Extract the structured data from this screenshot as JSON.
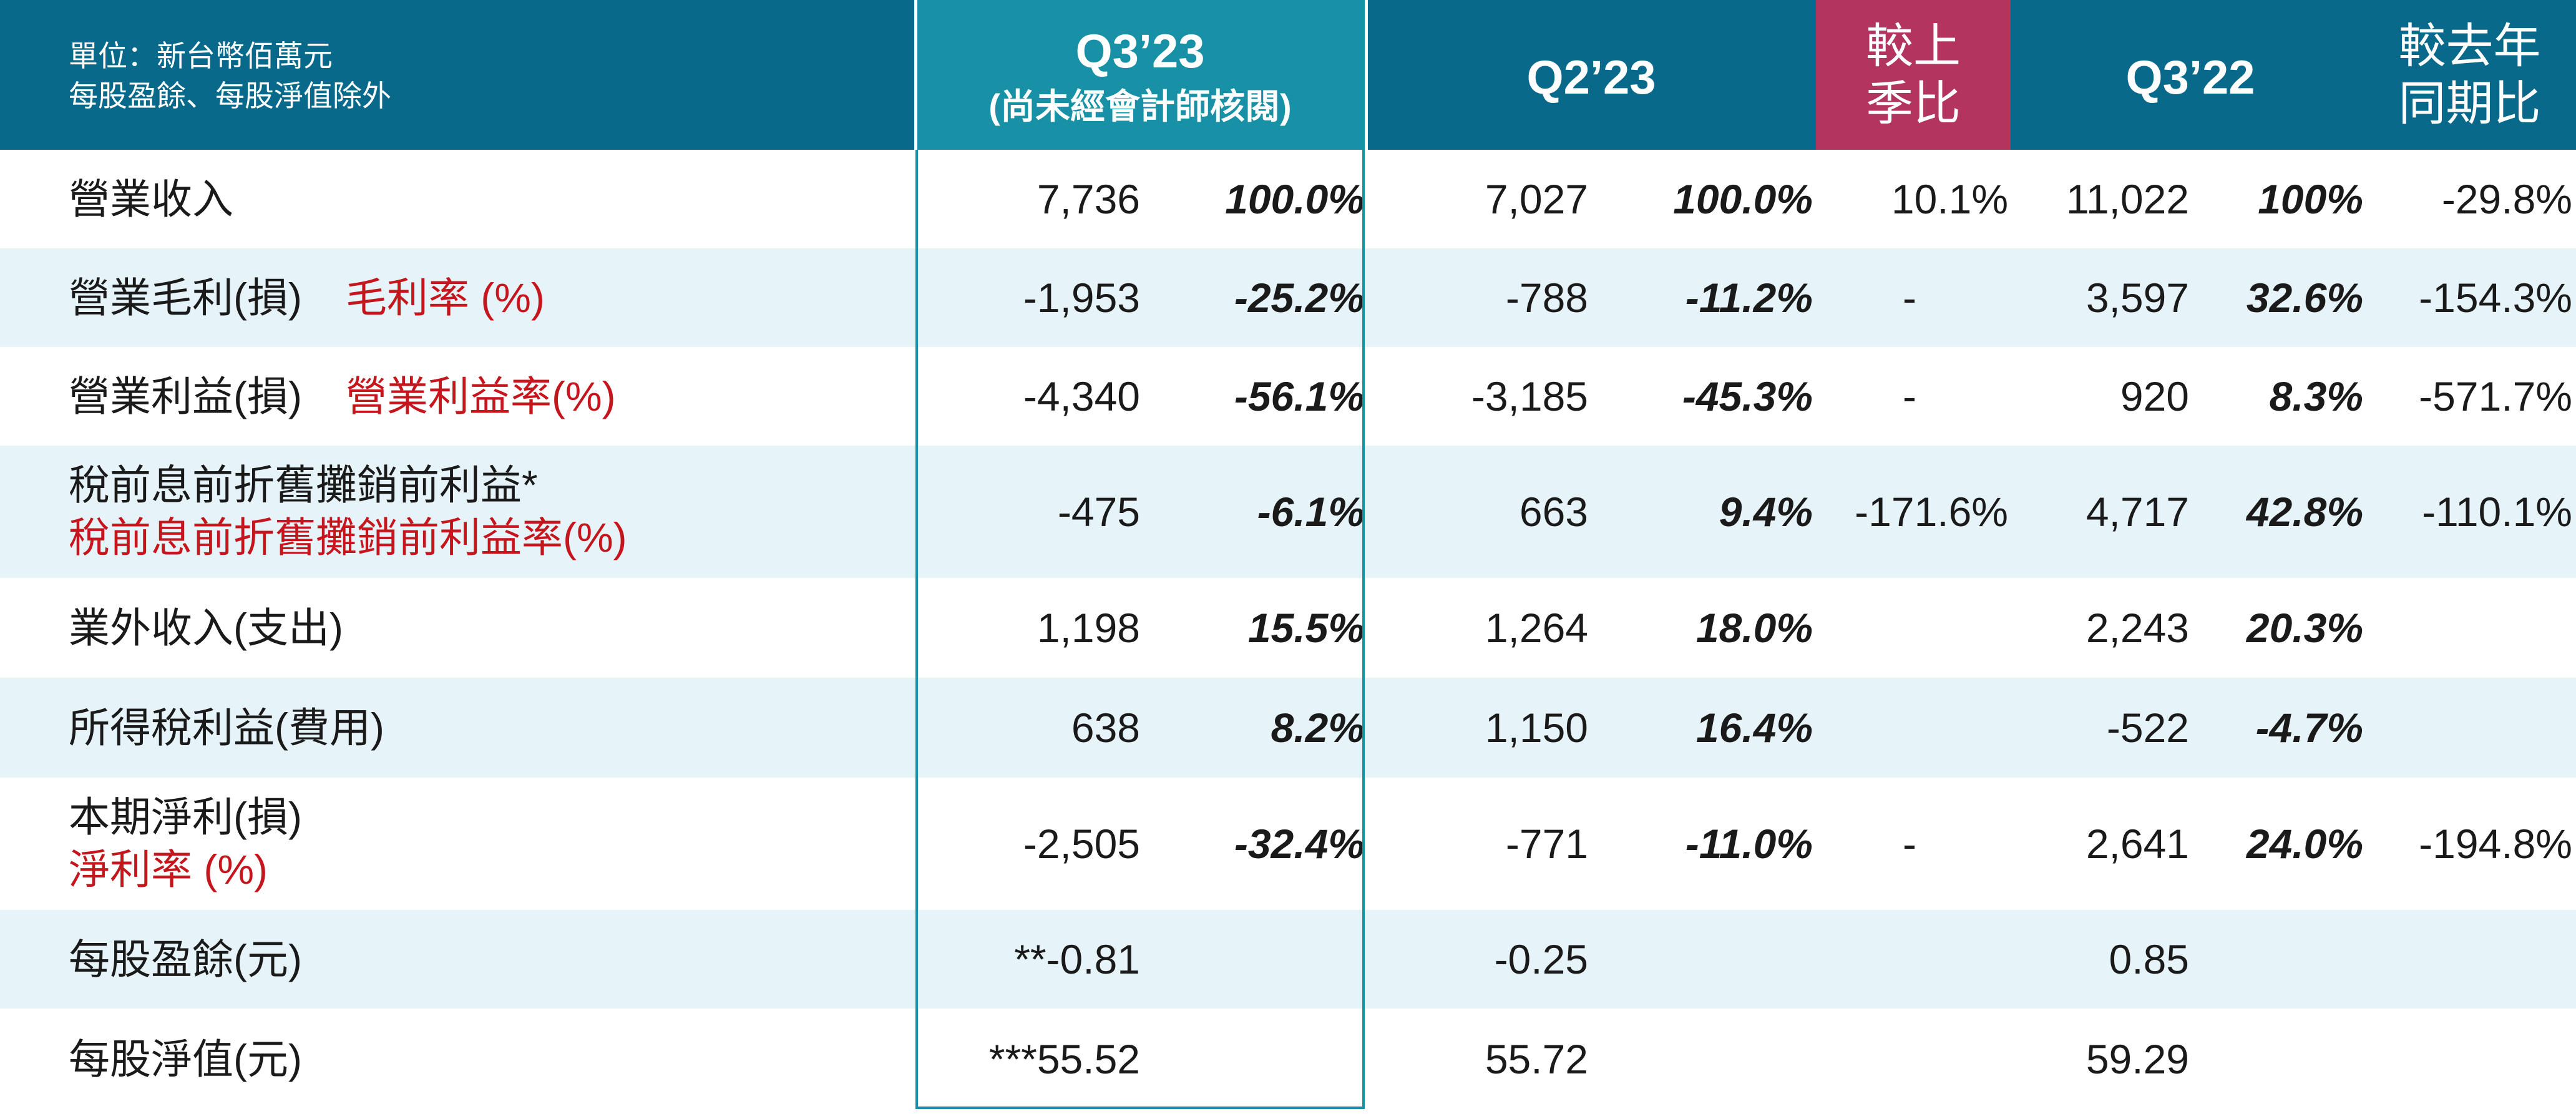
{
  "header": {
    "unit_line1": "單位：新台幣佰萬元",
    "unit_line2": "每股盈餘、每股淨值除外",
    "q3_23": "Q3’23",
    "q3_23_sub": "(尚未經會計師核閱)",
    "q2_23": "Q2’23",
    "qoq_line1": "較上",
    "qoq_line2": "季比",
    "q3_22": "Q3’22",
    "yoy_line1": "較去年",
    "yoy_line2": "同期比"
  },
  "rows": [
    {
      "label": "營業收入",
      "label_red": "",
      "label2": "",
      "q3_23": "7,736",
      "q3_23_pct": "100.0%",
      "q2_23": "7,027",
      "q2_23_pct": "100.0%",
      "qoq": "10.1%",
      "q3_22": "11,022",
      "q3_22_pct": "100%",
      "yoy": "-29.8%"
    },
    {
      "label": "營業毛利(損)",
      "label_red": "毛利率 (%)",
      "label2": "",
      "q3_23": "-1,953",
      "q3_23_pct": "-25.2%",
      "q2_23": "-788",
      "q2_23_pct": "-11.2%",
      "qoq": "-",
      "q3_22": "3,597",
      "q3_22_pct": "32.6%",
      "yoy": "-154.3%"
    },
    {
      "label": "營業利益(損)",
      "label_red": "營業利益率(%)",
      "label2": "",
      "q3_23": "-4,340",
      "q3_23_pct": "-56.1%",
      "q2_23": "-3,185",
      "q2_23_pct": "-45.3%",
      "qoq": "-",
      "q3_22": "920",
      "q3_22_pct": "8.3%",
      "yoy": "-571.7%"
    },
    {
      "label": "稅前息前折舊攤銷前利益*",
      "label_red": "",
      "label2": "稅前息前折舊攤銷前利益率(%)",
      "q3_23": "-475",
      "q3_23_pct": "-6.1%",
      "q2_23": "663",
      "q2_23_pct": "9.4%",
      "qoq": "-171.6%",
      "q3_22": "4,717",
      "q3_22_pct": "42.8%",
      "yoy": "-110.1%"
    },
    {
      "label": "業外收入(支出)",
      "label_red": "",
      "label2": "",
      "q3_23": "1,198",
      "q3_23_pct": "15.5%",
      "q2_23": "1,264",
      "q2_23_pct": "18.0%",
      "qoq": "",
      "q3_22": "2,243",
      "q3_22_pct": "20.3%",
      "yoy": ""
    },
    {
      "label": "所得稅利益(費用)",
      "label_red": "",
      "label2": "",
      "q3_23": "638",
      "q3_23_pct": "8.2%",
      "q2_23": "1,150",
      "q2_23_pct": "16.4%",
      "qoq": "",
      "q3_22": "-522",
      "q3_22_pct": "-4.7%",
      "yoy": ""
    },
    {
      "label": "本期淨利(損)",
      "label_red": "",
      "label2": "淨利率 (%)",
      "q3_23": "-2,505",
      "q3_23_pct": "-32.4%",
      "q2_23": "-771",
      "q2_23_pct": "-11.0%",
      "qoq": "-",
      "q3_22": "2,641",
      "q3_22_pct": "24.0%",
      "yoy": "-194.8%"
    },
    {
      "label": "每股盈餘(元)",
      "label_red": "",
      "label2": "",
      "q3_23": "**-0.81",
      "q3_23_pct": "",
      "q2_23": "-0.25",
      "q2_23_pct": "",
      "qoq": "",
      "q3_22": "0.85",
      "q3_22_pct": "",
      "yoy": ""
    },
    {
      "label": "每股淨值(元)",
      "label_red": "",
      "label2": "",
      "q3_23": "***55.52",
      "q3_23_pct": "",
      "q2_23": "55.72",
      "q2_23_pct": "",
      "qoq": "",
      "q3_22": "59.29",
      "q3_22_pct": "",
      "yoy": ""
    }
  ],
  "colors": {
    "header_bg": "#08698a",
    "q3_23_header_bg": "#1891a6",
    "qoq_header_bg": "#b3355f",
    "alt_row_bg": "#e6f3f8",
    "highlight_red": "#c4161c"
  }
}
